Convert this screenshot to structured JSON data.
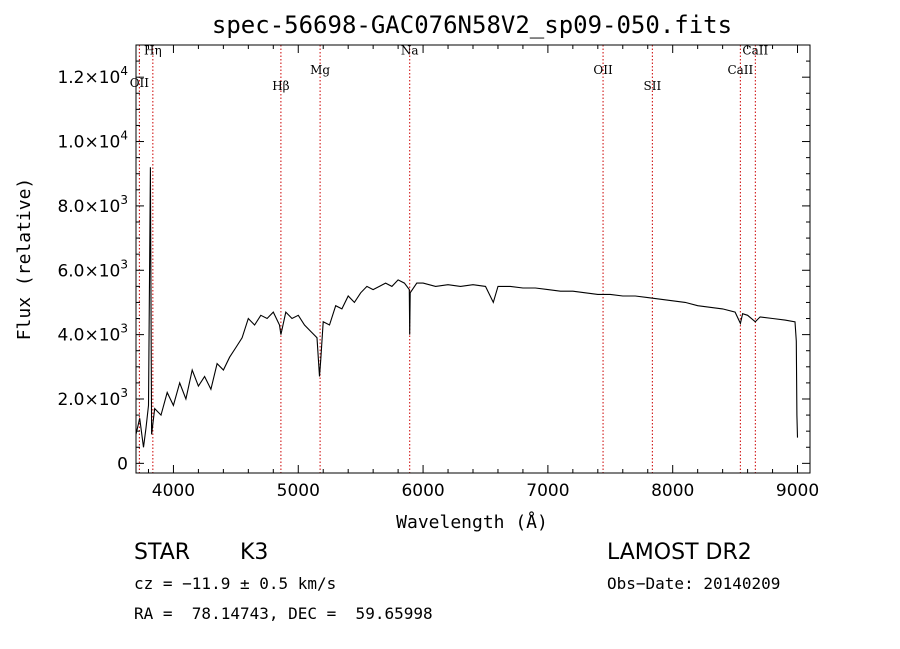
{
  "chart_data": {
    "type": "line",
    "title": "spec-56698-GAC076N58V2_sp09-050.fits",
    "xlabel": "Wavelength (Å)",
    "ylabel": "Flux (relative)",
    "xlim": [
      3700,
      9100
    ],
    "ylim": [
      -300,
      13000
    ],
    "x_ticks": [
      4000,
      5000,
      6000,
      7000,
      8000,
      9000
    ],
    "x_tick_labels": [
      "4000",
      "5000",
      "6000",
      "7000",
      "8000",
      "9000"
    ],
    "y_ticks": [
      {
        "value": 0,
        "mant": "0",
        "exp": ""
      },
      {
        "value": 2000,
        "mant": "2.0×10",
        "exp": "3"
      },
      {
        "value": 4000,
        "mant": "4.0×10",
        "exp": "3"
      },
      {
        "value": 6000,
        "mant": "6.0×10",
        "exp": "3"
      },
      {
        "value": 8000,
        "mant": "8.0×10",
        "exp": "3"
      },
      {
        "value": 10000,
        "mant": "1.0×10",
        "exp": "4"
      },
      {
        "value": 12000,
        "mant": "1.2×10",
        "exp": "4"
      }
    ],
    "lines": [
      {
        "name": "OII",
        "x": 3727,
        "label_y": 11700
      },
      {
        "name": "Hη",
        "x": 3835,
        "label_y": 12700
      },
      {
        "name": "Hβ",
        "x": 4861,
        "label_y": 11600
      },
      {
        "name": "Mg",
        "x": 5175,
        "label_y": 12100
      },
      {
        "name": "Na",
        "x": 5893,
        "label_y": 12700
      },
      {
        "name": "OII",
        "x": 7442,
        "label_y": 12100
      },
      {
        "name": "SII",
        "x": 7837,
        "label_y": 11600
      },
      {
        "name": "CaII",
        "x": 8542,
        "label_y": 12100
      },
      {
        "name": "CaII",
        "x": 8662,
        "label_y": 12700
      }
    ],
    "line_color": "#cc0000",
    "series": [
      {
        "points": [
          [
            3700,
            900
          ],
          [
            3730,
            1400
          ],
          [
            3760,
            500
          ],
          [
            3780,
            1100
          ],
          [
            3800,
            1800
          ],
          [
            3815,
            9200
          ],
          [
            3825,
            900
          ],
          [
            3850,
            1700
          ],
          [
            3900,
            1500
          ],
          [
            3950,
            2200
          ],
          [
            4000,
            1800
          ],
          [
            4050,
            2500
          ],
          [
            4100,
            2000
          ],
          [
            4150,
            2900
          ],
          [
            4200,
            2400
          ],
          [
            4250,
            2700
          ],
          [
            4300,
            2300
          ],
          [
            4350,
            3100
          ],
          [
            4400,
            2900
          ],
          [
            4450,
            3300
          ],
          [
            4500,
            3600
          ],
          [
            4550,
            3900
          ],
          [
            4600,
            4500
          ],
          [
            4650,
            4300
          ],
          [
            4700,
            4600
          ],
          [
            4750,
            4500
          ],
          [
            4800,
            4700
          ],
          [
            4850,
            4300
          ],
          [
            4861,
            4000
          ],
          [
            4900,
            4700
          ],
          [
            4950,
            4500
          ],
          [
            5000,
            4600
          ],
          [
            5050,
            4300
          ],
          [
            5100,
            4100
          ],
          [
            5150,
            3900
          ],
          [
            5170,
            2700
          ],
          [
            5180,
            3200
          ],
          [
            5200,
            4400
          ],
          [
            5250,
            4300
          ],
          [
            5300,
            4900
          ],
          [
            5350,
            4800
          ],
          [
            5400,
            5200
          ],
          [
            5450,
            5000
          ],
          [
            5500,
            5300
          ],
          [
            5550,
            5500
          ],
          [
            5600,
            5400
          ],
          [
            5650,
            5500
          ],
          [
            5700,
            5600
          ],
          [
            5750,
            5500
          ],
          [
            5800,
            5700
          ],
          [
            5850,
            5600
          ],
          [
            5890,
            5400
          ],
          [
            5893,
            4000
          ],
          [
            5897,
            5300
          ],
          [
            5950,
            5600
          ],
          [
            6000,
            5600
          ],
          [
            6100,
            5500
          ],
          [
            6200,
            5550
          ],
          [
            6300,
            5500
          ],
          [
            6400,
            5550
          ],
          [
            6500,
            5500
          ],
          [
            6563,
            5000
          ],
          [
            6600,
            5500
          ],
          [
            6700,
            5500
          ],
          [
            6800,
            5450
          ],
          [
            6900,
            5450
          ],
          [
            7000,
            5400
          ],
          [
            7100,
            5350
          ],
          [
            7200,
            5350
          ],
          [
            7300,
            5300
          ],
          [
            7400,
            5250
          ],
          [
            7500,
            5250
          ],
          [
            7600,
            5200
          ],
          [
            7700,
            5200
          ],
          [
            7800,
            5150
          ],
          [
            7900,
            5100
          ],
          [
            8000,
            5050
          ],
          [
            8100,
            5000
          ],
          [
            8200,
            4900
          ],
          [
            8300,
            4850
          ],
          [
            8400,
            4800
          ],
          [
            8500,
            4700
          ],
          [
            8542,
            4350
          ],
          [
            8560,
            4650
          ],
          [
            8600,
            4600
          ],
          [
            8662,
            4400
          ],
          [
            8700,
            4550
          ],
          [
            8800,
            4500
          ],
          [
            8900,
            4450
          ],
          [
            8980,
            4400
          ],
          [
            8990,
            3800
          ],
          [
            8995,
            1500
          ],
          [
            9000,
            800
          ]
        ]
      }
    ]
  },
  "footer": {
    "star_label": "STAR",
    "star_class": "K3",
    "survey": "LAMOST DR2",
    "cz": "cz = −11.9 ± 0.5 km/s",
    "obs_date": "Obs−Date: 20140209",
    "radec": "RA =  78.14743, DEC =  59.65998"
  }
}
